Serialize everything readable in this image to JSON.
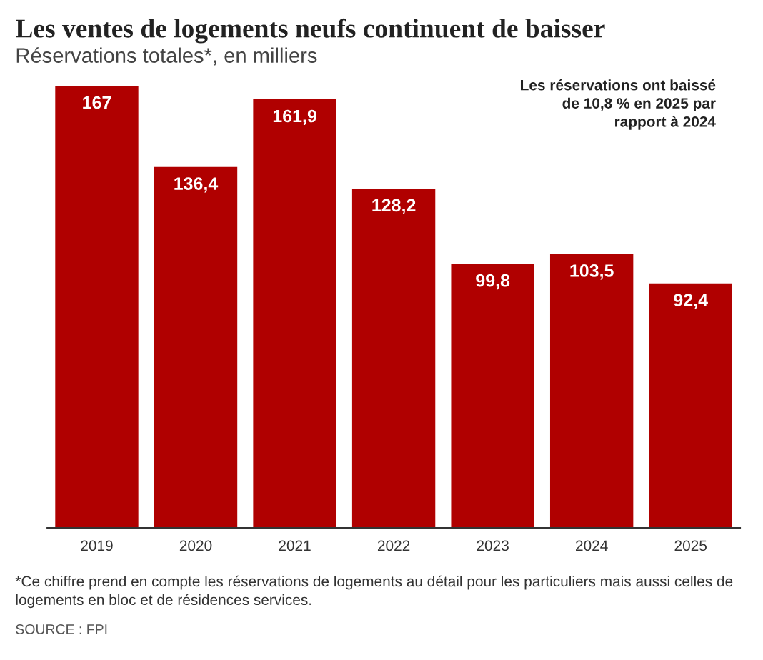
{
  "chart_data": {
    "type": "bar",
    "title": "Les ventes de logements neufs continuent de baisser",
    "subtitle": "Réservations totales*, en milliers",
    "categories": [
      "2019",
      "2020",
      "2021",
      "2022",
      "2023",
      "2024",
      "2025"
    ],
    "values": [
      167,
      136.4,
      161.9,
      128.2,
      99.8,
      103.5,
      92.4
    ],
    "value_labels": [
      "167",
      "136,4",
      "161,9",
      "128,2",
      "99,8",
      "103,5",
      "92,4"
    ],
    "color": "#b00000",
    "grid": false,
    "annotations": [
      "Les réservations ont baissé\nde 10,8 % en 2025 par\nrapport à 2024",
      "*Ce chiffre prend en compte les réservations de logements au détail pour les particuliers mais aussi celles de logements en bloc et de résidences services.",
      "SOURCE : FPI"
    ]
  }
}
